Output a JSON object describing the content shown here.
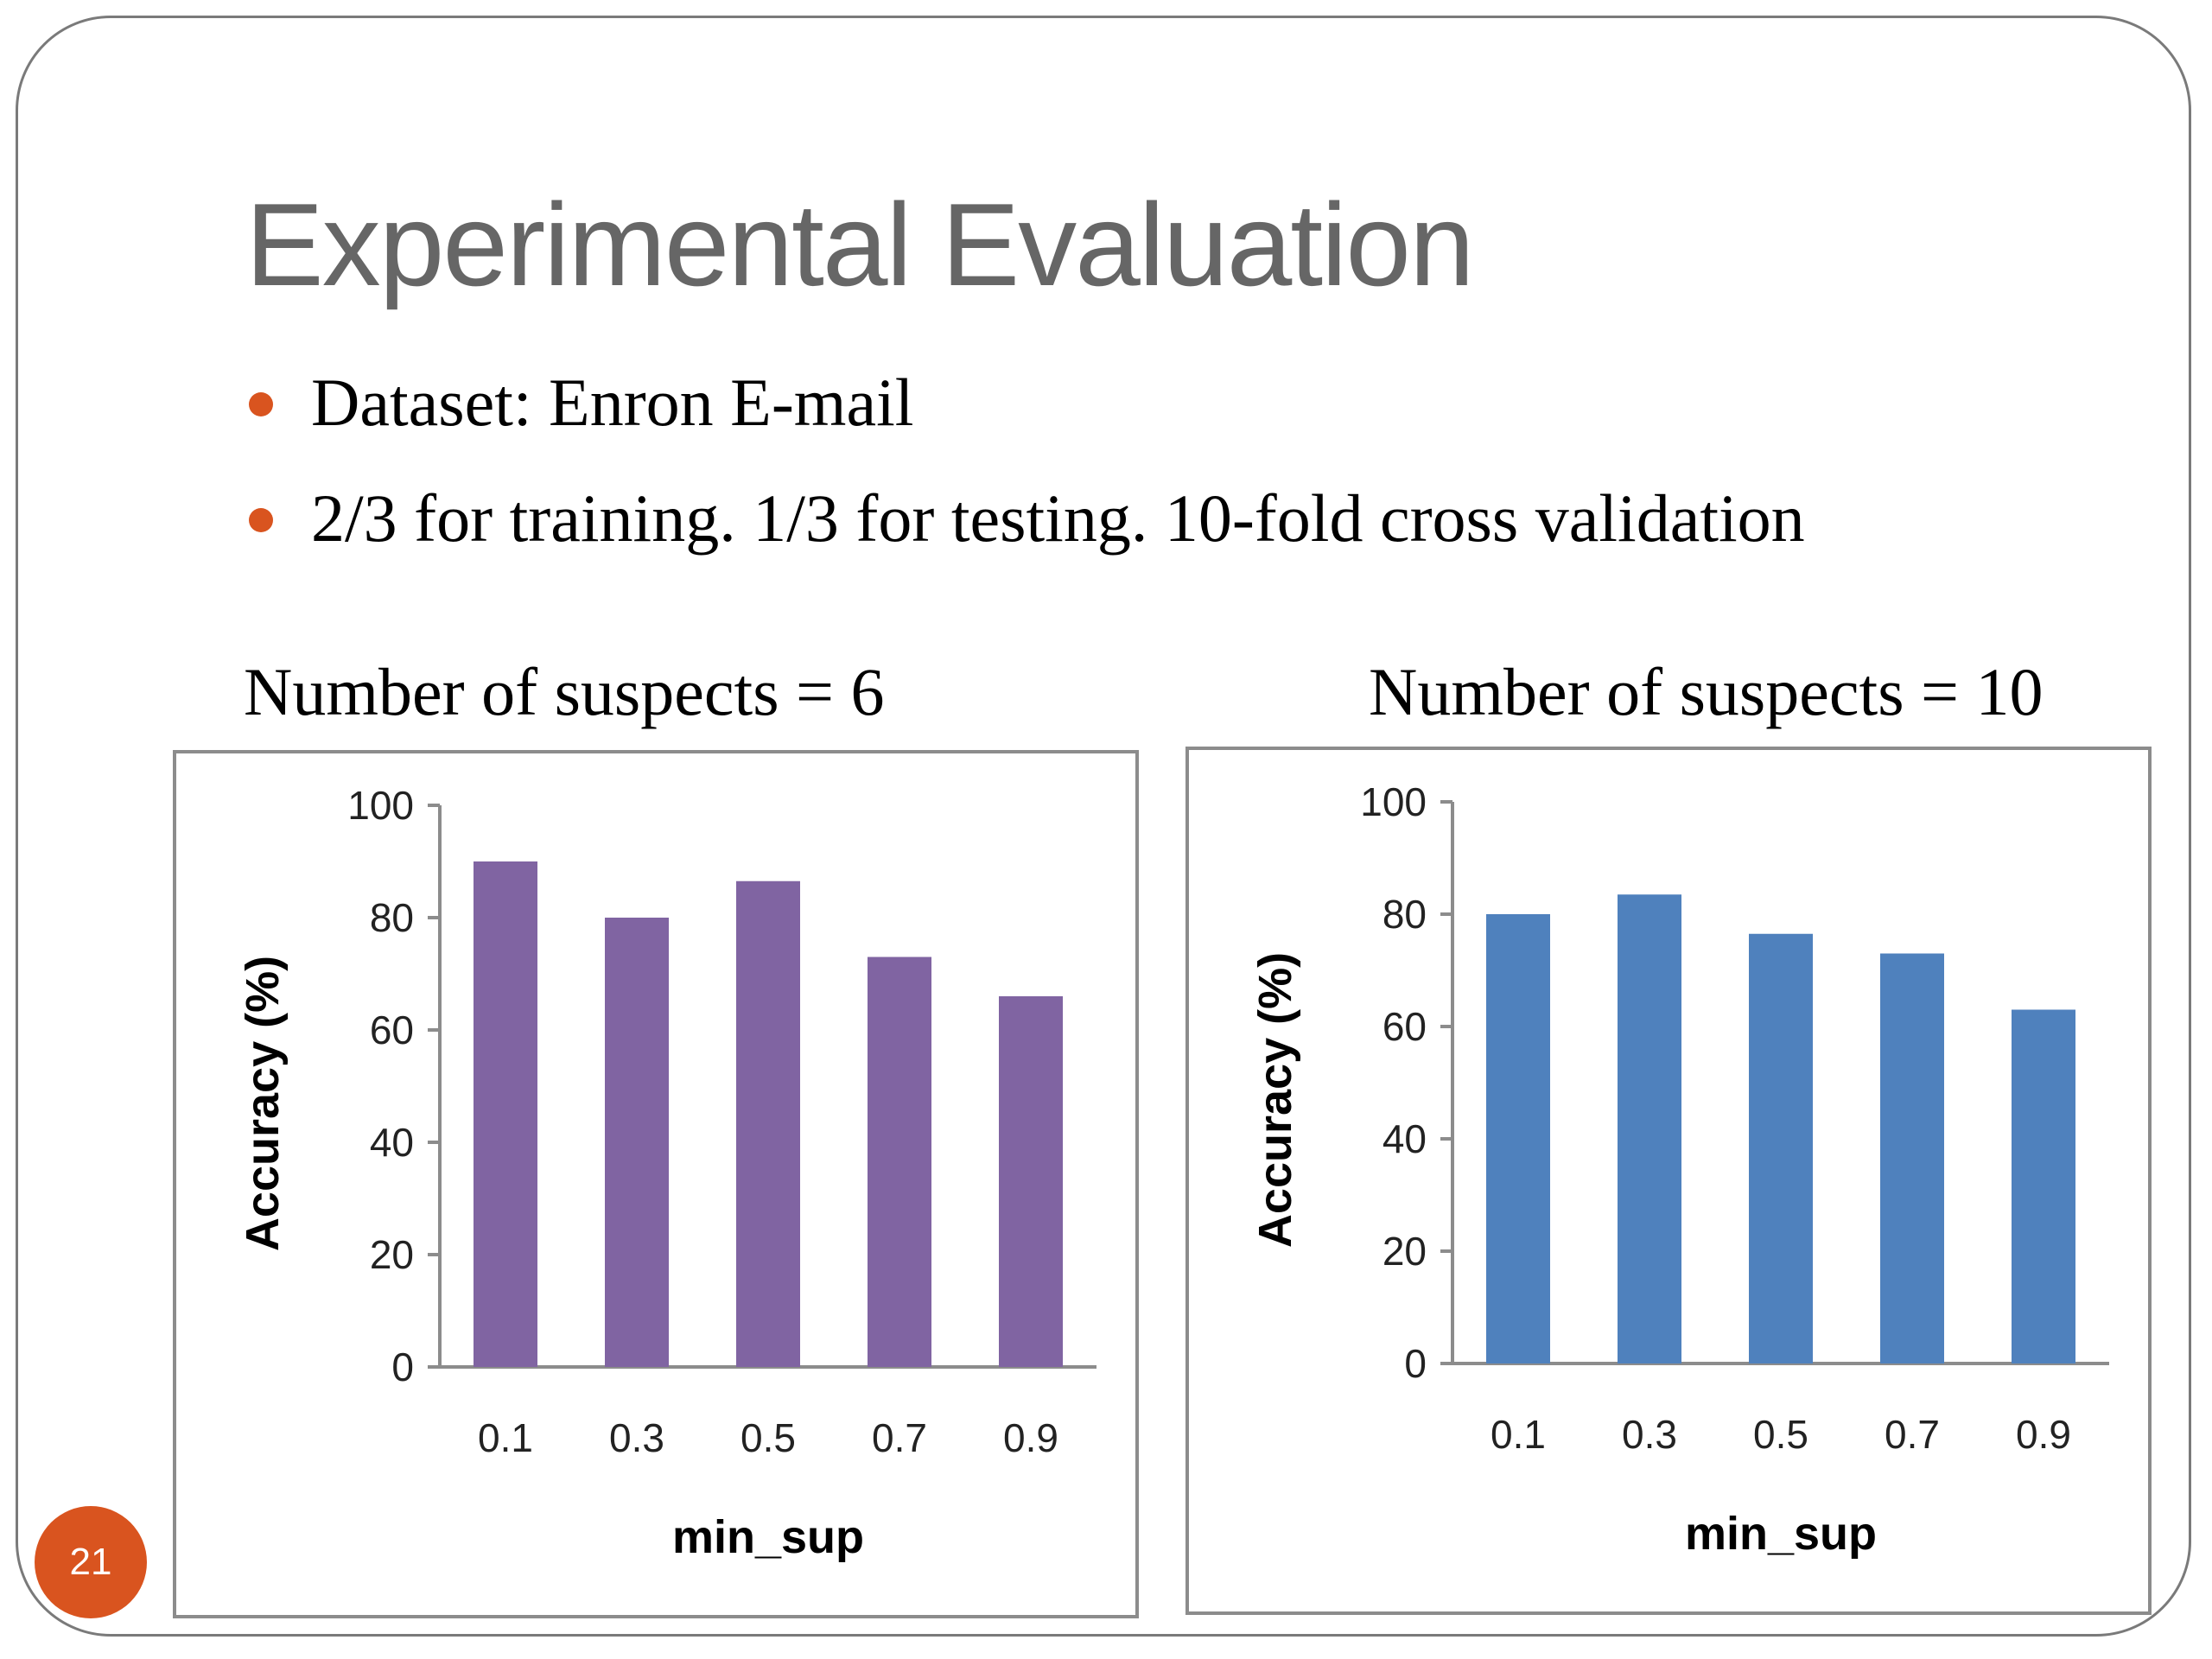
{
  "slide": {
    "title": "Experimental Evaluation",
    "bullets": [
      "Dataset: Enron E-mail",
      "2/3 for training. 1/3 for testing. 10-fold cross validation"
    ],
    "page_number": "21",
    "accent_color": "#d9541f"
  },
  "chart_data": [
    {
      "type": "bar",
      "title": "Number of suspects = 6",
      "categories": [
        "0.1",
        "0.3",
        "0.5",
        "0.7",
        "0.9"
      ],
      "values": [
        90,
        80,
        86.5,
        73,
        66
      ],
      "xlabel": "min_sup",
      "ylabel": "Accuracy (%)",
      "ylim": [
        0,
        100
      ],
      "yticks": [
        "0",
        "20",
        "40",
        "60",
        "80",
        "100"
      ],
      "color": "#8064a2",
      "grid": false,
      "legend": false
    },
    {
      "type": "bar",
      "title": "Number of suspects = 10",
      "categories": [
        "0.1",
        "0.3",
        "0.5",
        "0.7",
        "0.9"
      ],
      "values": [
        80,
        83.5,
        76.5,
        73,
        63
      ],
      "xlabel": "min_sup",
      "ylabel": "Accuracy (%)",
      "ylim": [
        0,
        100
      ],
      "yticks": [
        "0",
        "20",
        "40",
        "60",
        "80",
        "100"
      ],
      "color": "#4f81bd",
      "grid": false,
      "legend": false
    }
  ]
}
